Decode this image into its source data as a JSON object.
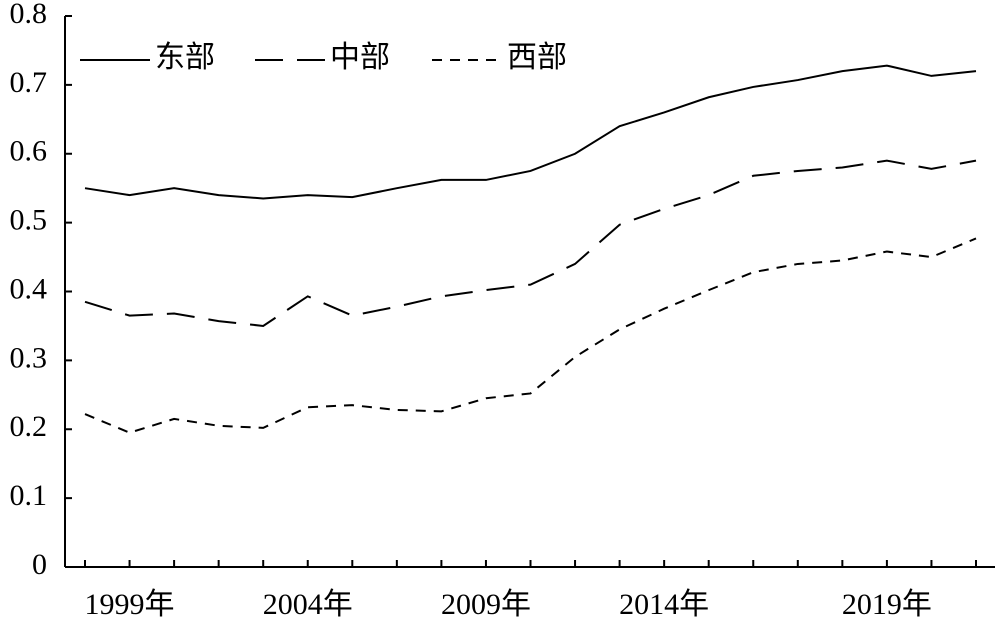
{
  "chart_data": {
    "type": "line",
    "categories": [
      null,
      "1999年",
      null,
      null,
      null,
      "2004年",
      null,
      null,
      null,
      "2009年",
      null,
      null,
      null,
      "2014年",
      null,
      null,
      null,
      null,
      "2019年",
      null,
      null
    ],
    "series": [
      {
        "name": "东部",
        "color": "#000000",
        "dash": "solid",
        "values": [
          0.55,
          0.54,
          0.55,
          0.54,
          0.535,
          0.54,
          0.537,
          0.55,
          0.562,
          0.562,
          0.575,
          0.6,
          0.64,
          0.66,
          0.682,
          0.697,
          0.707,
          0.72,
          0.728,
          0.713,
          0.72
        ]
      },
      {
        "name": "中部",
        "color": "#000000",
        "dash": "long",
        "values": [
          0.385,
          0.365,
          0.368,
          0.357,
          0.35,
          0.393,
          0.365,
          0.378,
          0.393,
          0.402,
          0.41,
          0.44,
          0.497,
          0.52,
          0.54,
          0.568,
          0.575,
          0.58,
          0.59,
          0.578,
          0.59
        ]
      },
      {
        "name": "西部",
        "color": "#000000",
        "dash": "short",
        "values": [
          0.222,
          0.195,
          0.215,
          0.205,
          0.202,
          0.232,
          0.235,
          0.228,
          0.226,
          0.245,
          0.252,
          0.305,
          0.345,
          0.375,
          0.402,
          0.428,
          0.44,
          0.445,
          0.458,
          0.45,
          0.477
        ]
      }
    ],
    "ylim": [
      0,
      0.8
    ],
    "yticks": [
      0,
      0.1,
      0.2,
      0.3,
      0.4,
      0.5,
      0.6,
      0.7,
      0.8
    ],
    "grid": false,
    "legend": "top-left"
  }
}
